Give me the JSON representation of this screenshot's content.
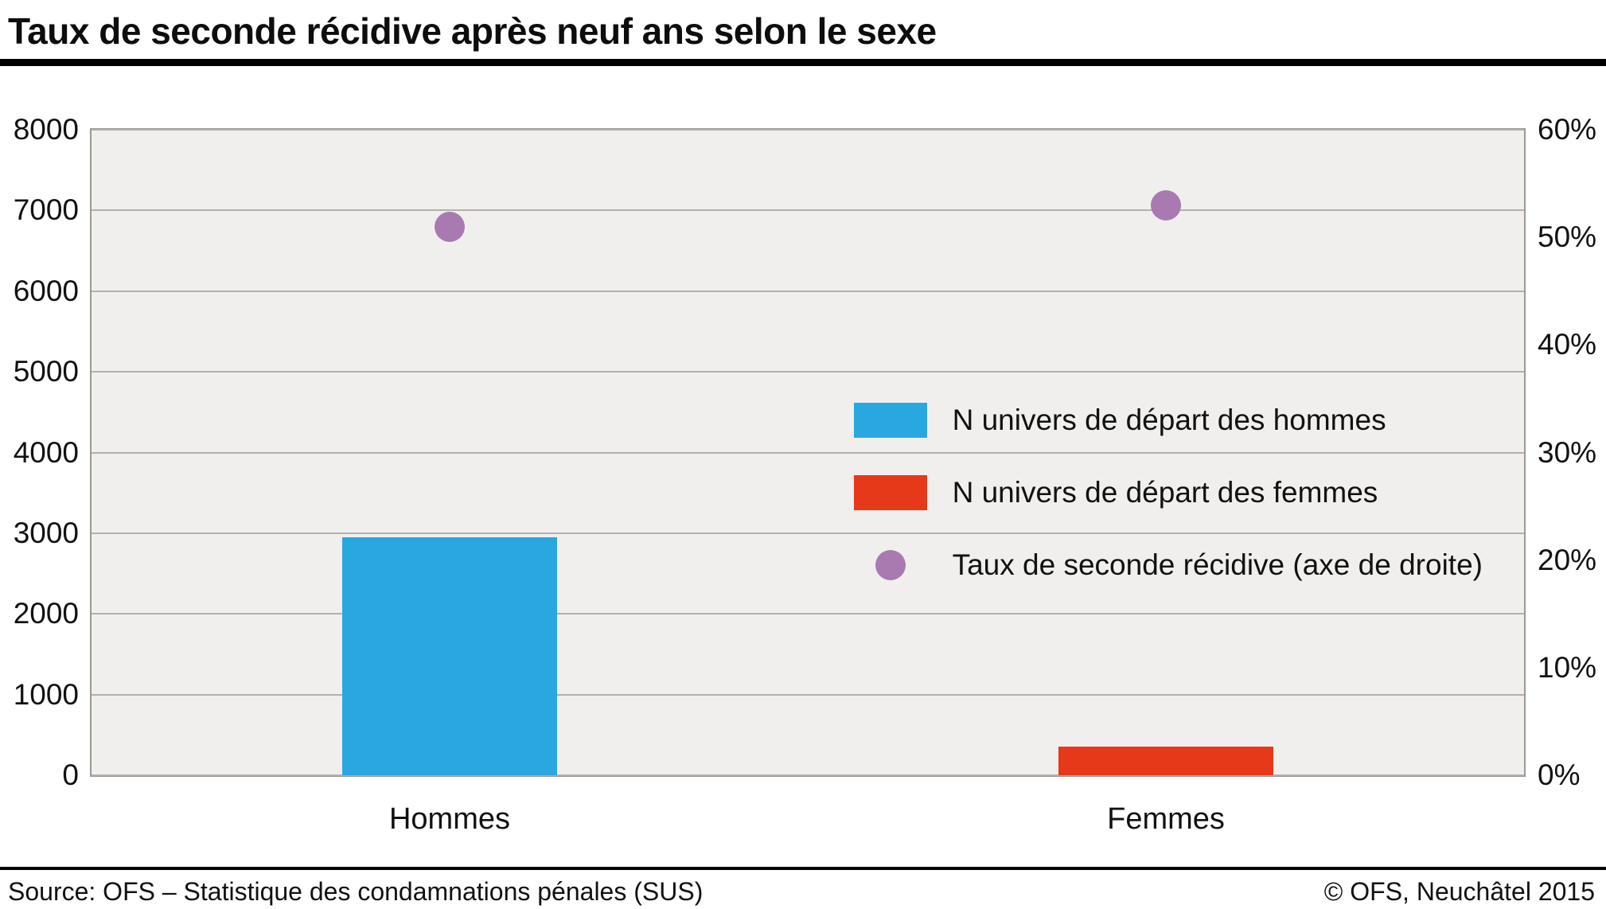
{
  "title": "Taux de seconde récidive après neuf ans selon le sexe",
  "footer": {
    "source": "Source: OFS – Statistique des condamnations pénales (SUS)",
    "copyright": "© OFS, Neuchâtel 2015"
  },
  "colors": {
    "bar_hommes": "#29a8df",
    "bar_femmes": "#e5391a",
    "dot": "#a87ab0",
    "plot_bg": "#f0efed",
    "gridline": "#b3b0ac",
    "plot_border": "#9c9995"
  },
  "chart_data": {
    "type": "bar",
    "categories": [
      "Hommes",
      "Femmes"
    ],
    "series": [
      {
        "name": "N univers de départ des hommes",
        "type": "bar",
        "axis": "left",
        "color_key": "bar_hommes",
        "values": [
          2950,
          null
        ]
      },
      {
        "name": "N univers de départ des femmes",
        "type": "bar",
        "axis": "left",
        "color_key": "bar_femmes",
        "values": [
          null,
          360
        ]
      },
      {
        "name": "Taux de seconde récidive (axe de droite)",
        "type": "scatter",
        "axis": "right",
        "color_key": "dot",
        "values": [
          51,
          53
        ]
      }
    ],
    "left_axis": {
      "min": 0,
      "max": 8000,
      "step": 1000,
      "ticks": [
        "0",
        "1000",
        "2000",
        "3000",
        "4000",
        "5000",
        "6000",
        "7000",
        "8000"
      ]
    },
    "right_axis": {
      "min": 0,
      "max": 60,
      "step": 10,
      "ticks": [
        "0%",
        "10%",
        "20%",
        "30%",
        "40%",
        "50%",
        "60%"
      ]
    },
    "grid": true,
    "legend_position": "inside-right"
  }
}
